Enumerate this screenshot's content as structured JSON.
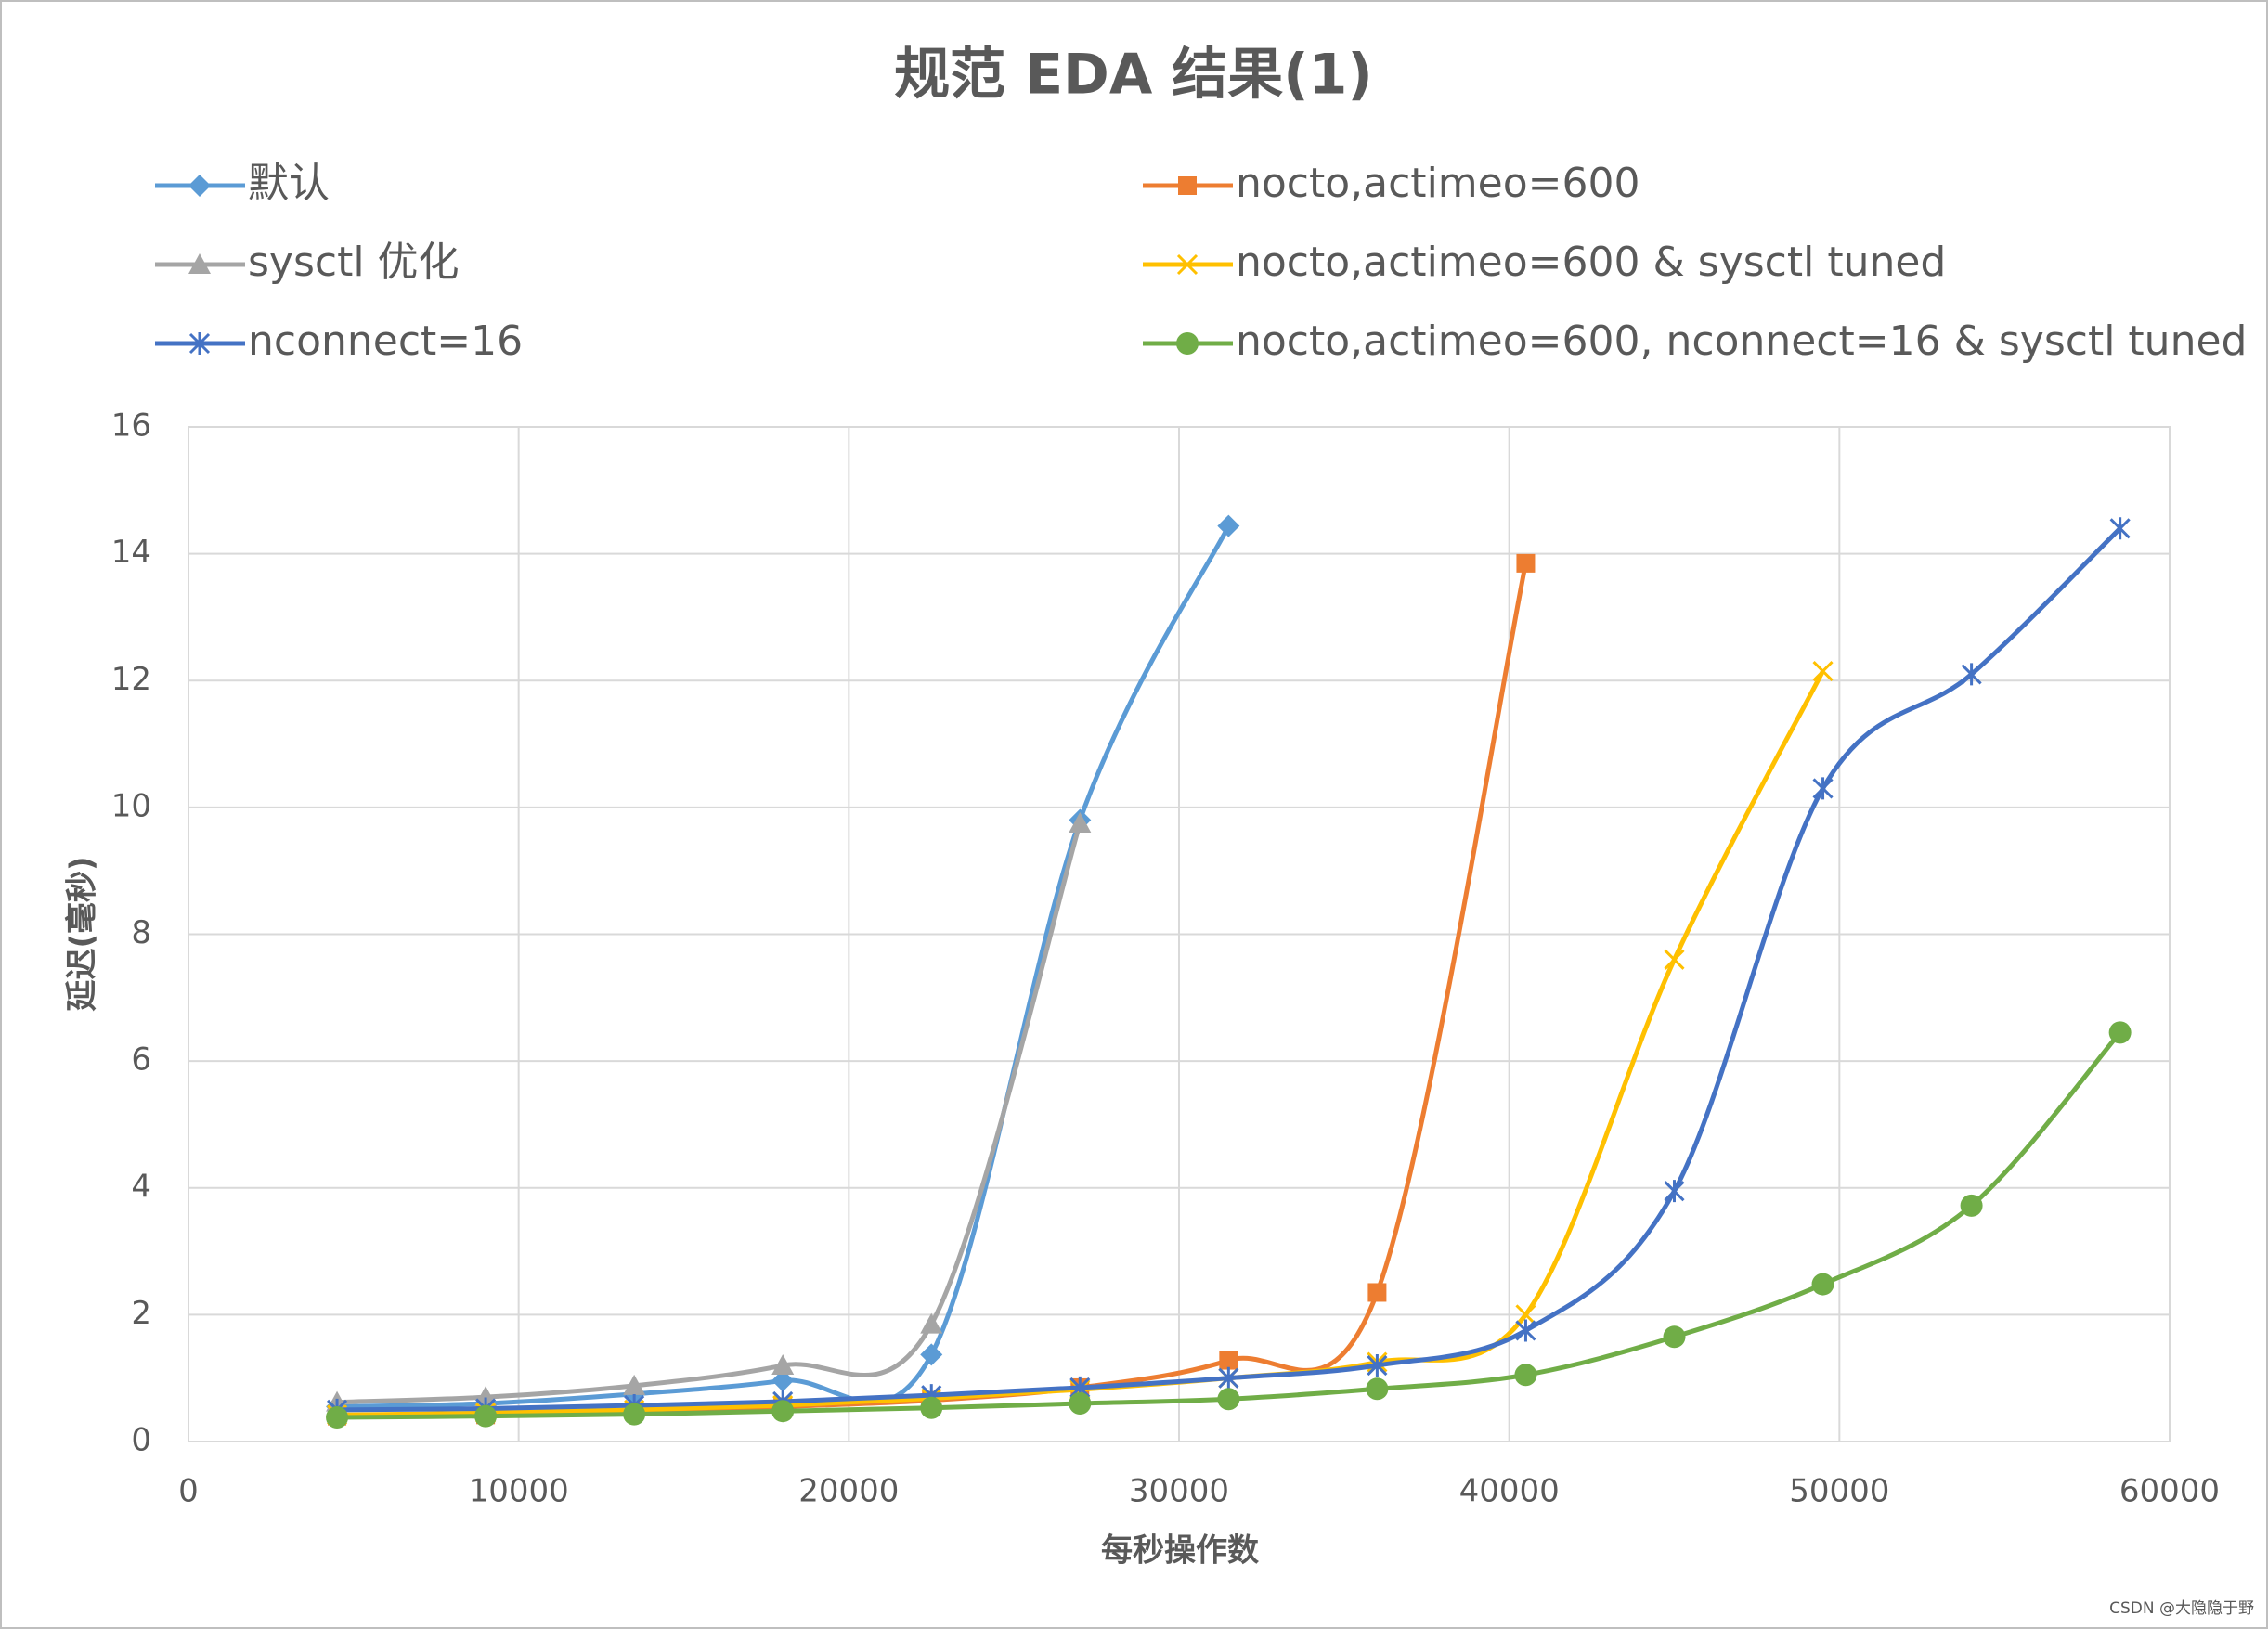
{
  "chart_data": {
    "type": "line",
    "title": "规范 EDA 结果(1)",
    "xlabel": "每秒操作数",
    "ylabel": "延迟(毫秒)",
    "xlim": [
      0,
      60000
    ],
    "xticks": [
      0,
      10000,
      20000,
      30000,
      40000,
      50000,
      60000
    ],
    "ylim": [
      0,
      16
    ],
    "yticks": [
      0,
      2,
      4,
      6,
      8,
      10,
      12,
      14,
      16
    ],
    "grid": true,
    "smooth": true,
    "series": [
      {
        "name": "默认",
        "color": "#5b9bd5",
        "marker": "diamond",
        "x": [
          4500,
          9000,
          13500,
          18000,
          22500,
          27000,
          31500
        ],
        "values": [
          0.55,
          0.6,
          0.75,
          0.96,
          1.37,
          9.8,
          14.44
        ]
      },
      {
        "name": "nocto,actimeo=600",
        "color": "#ed7d31",
        "marker": "square",
        "x": [
          4500,
          9000,
          13500,
          18000,
          22500,
          27000,
          31500,
          36000,
          40500
        ],
        "values": [
          0.4,
          0.42,
          0.48,
          0.55,
          0.65,
          0.85,
          1.28,
          2.35,
          13.85
        ]
      },
      {
        "name": "sysctl 优化",
        "color": "#a5a5a5",
        "marker": "triangle",
        "x": [
          4500,
          9000,
          13500,
          18000,
          22500,
          27000
        ],
        "values": [
          0.62,
          0.7,
          0.88,
          1.2,
          1.85,
          9.75
        ]
      },
      {
        "name": "nocto,actimeo=600 & sysctl tuned",
        "color": "#ffc000",
        "marker": "x",
        "x": [
          4500,
          9000,
          13500,
          18000,
          22500,
          27000,
          31500,
          36000,
          40500,
          45000,
          49500
        ],
        "values": [
          0.42,
          0.45,
          0.5,
          0.57,
          0.68,
          0.82,
          1.0,
          1.25,
          2.0,
          7.6,
          12.15
        ]
      },
      {
        "name": "nconnect=16",
        "color": "#4472c4",
        "marker": "star",
        "x": [
          4500,
          9000,
          13500,
          18000,
          22500,
          27000,
          31500,
          36000,
          40500,
          45000,
          49500,
          54000,
          58500
        ],
        "values": [
          0.5,
          0.52,
          0.57,
          0.63,
          0.73,
          0.85,
          1.0,
          1.2,
          1.75,
          3.95,
          10.3,
          12.1,
          14.4
        ]
      },
      {
        "name": "nocto,actimeo=600, nconnect=16 & sysctl tuned",
        "color": "#70ad47",
        "marker": "circle",
        "x": [
          4500,
          9000,
          13500,
          18000,
          22500,
          27000,
          31500,
          36000,
          40500,
          45000,
          49500,
          54000,
          58500
        ],
        "values": [
          0.38,
          0.4,
          0.43,
          0.48,
          0.53,
          0.6,
          0.67,
          0.83,
          1.05,
          1.65,
          2.48,
          3.72,
          6.45
        ]
      }
    ]
  },
  "watermark": "CSDN @大隐隐于野"
}
